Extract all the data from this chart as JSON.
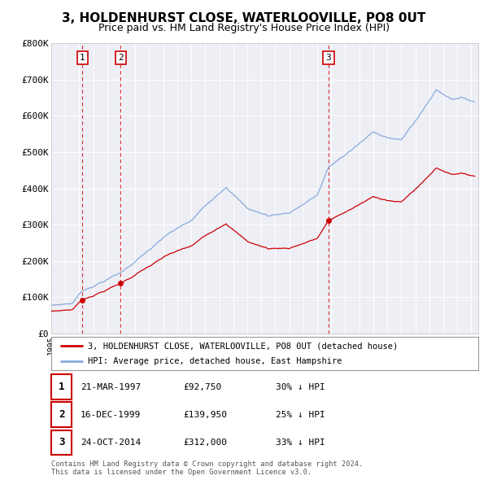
{
  "title": "3, HOLDENHURST CLOSE, WATERLOOVILLE, PO8 0UT",
  "subtitle": "Price paid vs. HM Land Registry's House Price Index (HPI)",
  "title_fontsize": 11,
  "subtitle_fontsize": 9,
  "ylim": [
    0,
    800000
  ],
  "yticks": [
    0,
    100000,
    200000,
    300000,
    400000,
    500000,
    600000,
    700000,
    800000
  ],
  "ytick_labels": [
    "£0",
    "£100K",
    "£200K",
    "£300K",
    "£400K",
    "£500K",
    "£600K",
    "£700K",
    "£800K"
  ],
  "xlim_start": 1995.0,
  "xlim_end": 2025.5,
  "background_color": "#ffffff",
  "plot_bg_color": "#eeeef5",
  "grid_color": "#ffffff",
  "red_line_color": "#cc0000",
  "blue_line_color": "#88aadd",
  "sale_points": [
    {
      "num": 1,
      "year": 1997.22,
      "price": 92750,
      "label": "1"
    },
    {
      "num": 2,
      "year": 1999.96,
      "price": 139950,
      "label": "2"
    },
    {
      "num": 3,
      "year": 2014.81,
      "price": 312000,
      "label": "3"
    }
  ],
  "vline_years": [
    1997.22,
    1999.96,
    2014.81
  ],
  "legend_red_label": "3, HOLDENHURST CLOSE, WATERLOOVILLE, PO8 0UT (detached house)",
  "legend_blue_label": "HPI: Average price, detached house, East Hampshire",
  "table_rows": [
    {
      "num": "1",
      "date": "21-MAR-1997",
      "price": "£92,750",
      "hpi": "30% ↓ HPI"
    },
    {
      "num": "2",
      "date": "16-DEC-1999",
      "price": "£139,950",
      "hpi": "25% ↓ HPI"
    },
    {
      "num": "3",
      "date": "24-OCT-2014",
      "price": "£312,000",
      "hpi": "33% ↓ HPI"
    }
  ],
  "footnote": "Contains HM Land Registry data © Crown copyright and database right 2024.\nThis data is licensed under the Open Government Licence v3.0."
}
